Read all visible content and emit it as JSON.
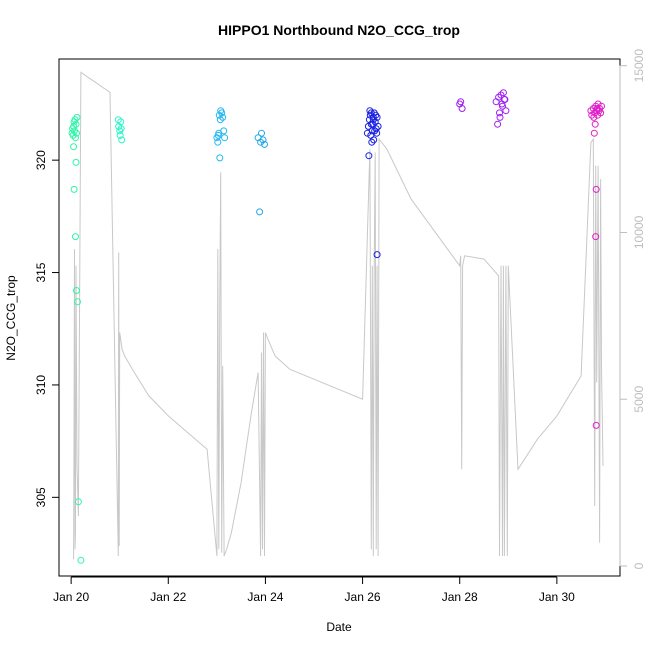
{
  "chart_data": {
    "type": "scatter",
    "title": "HIPPO1 Northbound N2O_CCG_trop",
    "xlabel": "Date",
    "ylabel": "N2O_CCG_trop",
    "x_unit": "day of January (1970-style date axis, year not shown)",
    "xlim": [
      19.75,
      31.3
    ],
    "ylim": [
      301.5,
      324.5
    ],
    "y2lim": [
      -300,
      15200
    ],
    "x_ticks": [
      20,
      22,
      24,
      26,
      28,
      30
    ],
    "x_tick_labels": [
      "Jan 20",
      "Jan 22",
      "Jan 24",
      "Jan 26",
      "Jan 28",
      "Jan 30"
    ],
    "y_ticks": [
      305,
      310,
      315,
      320
    ],
    "y2_ticks": [
      0,
      5000,
      10000,
      15000
    ],
    "grid": false,
    "legend": "none",
    "secondary_axis_color": "#bdbdbd",
    "secondary_series": {
      "name": "",
      "color": "#c8c8c8",
      "x": [
        20.05,
        20.06,
        20.07,
        20.08,
        20.09,
        20.1,
        20.12,
        20.15,
        20.2,
        20.3,
        20.5,
        20.8,
        20.97,
        20.98,
        20.99,
        21.0,
        21.02,
        21.05,
        21.1,
        21.3,
        21.6,
        22.0,
        22.4,
        22.8,
        23.0,
        23.02,
        23.04,
        23.06,
        23.08,
        23.1,
        23.12,
        23.15,
        23.2,
        23.3,
        23.5,
        23.7,
        23.85,
        23.9,
        23.92,
        23.94,
        23.96,
        23.98,
        24.0,
        24.05,
        24.2,
        24.5,
        25.0,
        25.5,
        26.0,
        26.15,
        26.18,
        26.2,
        26.22,
        26.24,
        26.26,
        26.28,
        26.3,
        26.32,
        26.34,
        26.5,
        27.0,
        27.5,
        28.0,
        28.02,
        28.04,
        28.06,
        28.1,
        28.5,
        28.8,
        28.82,
        28.85,
        28.88,
        28.9,
        28.92,
        28.95,
        28.98,
        29.0,
        29.2,
        29.6,
        30.0,
        30.5,
        30.7,
        30.75,
        30.78,
        30.8,
        30.82,
        30.85,
        30.88,
        30.9,
        30.92,
        30.95
      ],
      "y": [
        200,
        5000,
        9500,
        500,
        1000,
        9000,
        3000,
        1500,
        14800,
        14700,
        14500,
        14200,
        300,
        9400,
        600,
        7000,
        6800,
        6500,
        6300,
        5800,
        5100,
        4500,
        4000,
        3500,
        300,
        9500,
        500,
        8000,
        11800,
        400,
        6000,
        300,
        500,
        1000,
        2500,
        4500,
        5800,
        300,
        6400,
        500,
        7000,
        300,
        7000,
        6800,
        6300,
        5900,
        5600,
        5300,
        5000,
        12500,
        500,
        9000,
        300,
        9000,
        12400,
        500,
        9000,
        300,
        12800,
        12500,
        11000,
        10000,
        9000,
        9300,
        2900,
        9000,
        9300,
        9200,
        8700,
        300,
        9000,
        300,
        9000,
        300,
        9000,
        300,
        9000,
        2900,
        3800,
        4500,
        5700,
        12700,
        12800,
        1800,
        12000,
        5500,
        12000,
        700,
        11600,
        6000,
        3000
      ]
    },
    "series": [
      {
        "color": "#2ef5a8",
        "x": [
          20.02,
          20.03,
          20.04,
          20.05,
          20.06,
          20.07,
          20.08,
          20.09,
          20.1,
          20.11,
          20.12,
          20.05,
          20.1,
          20.06,
          20.09,
          20.11,
          20.13,
          20.15,
          20.2
        ],
        "y": [
          321.2,
          321.4,
          321.1,
          321.5,
          321.7,
          321.3,
          321.8,
          321.0,
          321.6,
          321.2,
          321.9,
          320.6,
          319.9,
          318.7,
          316.6,
          314.2,
          313.7,
          304.8,
          302.2
        ]
      },
      {
        "color": "#2ef5c8",
        "x": [
          20.97,
          20.98,
          21.0,
          21.01,
          21.02,
          21.03,
          21.04
        ],
        "y": [
          321.8,
          321.5,
          321.3,
          321.1,
          321.7,
          321.4,
          320.9
        ]
      },
      {
        "color": "#22b8f0",
        "x": [
          23.0,
          23.02,
          23.04,
          23.05,
          23.07,
          23.08,
          23.1,
          23.12,
          23.14,
          23.16,
          23.06,
          23.03
        ],
        "y": [
          321.0,
          320.8,
          321.2,
          322.0,
          321.8,
          322.2,
          322.1,
          321.9,
          321.3,
          321.0,
          320.1,
          321.1
        ]
      },
      {
        "color": "#22a8e8",
        "x": [
          23.85,
          23.9,
          23.92,
          23.95,
          23.98,
          23.88
        ],
        "y": [
          321.0,
          320.8,
          321.2,
          320.9,
          320.7,
          317.7
        ]
      },
      {
        "color": "#1a20e0",
        "x": [
          26.1,
          26.12,
          26.14,
          26.16,
          26.18,
          26.2,
          26.22,
          26.24,
          26.26,
          26.28,
          26.3,
          26.32,
          26.15,
          26.17,
          26.19,
          26.21,
          26.23,
          26.25,
          26.27,
          26.29,
          26.13,
          26.18,
          26.22,
          26.3
        ],
        "y": [
          321.2,
          321.5,
          321.8,
          322.0,
          321.6,
          321.3,
          321.9,
          322.1,
          321.7,
          321.4,
          321.9,
          321.5,
          322.2,
          321.1,
          320.8,
          321.6,
          320.9,
          321.3,
          322.0,
          321.2,
          320.2,
          322.1,
          321.8,
          315.8
        ]
      },
      {
        "color": "#a020f0",
        "x": [
          28.0,
          28.02,
          28.05,
          28.75,
          28.8,
          28.82,
          28.85,
          28.88,
          28.9,
          28.92,
          28.95,
          28.78,
          28.83,
          28.87,
          28.93
        ],
        "y": [
          322.5,
          322.6,
          322.3,
          322.6,
          322.8,
          322.1,
          322.9,
          322.4,
          323.0,
          322.7,
          322.2,
          321.6,
          321.9,
          322.5,
          322.7
        ]
      },
      {
        "color": "#e020c8",
        "x": [
          30.7,
          30.72,
          30.75,
          30.78,
          30.8,
          30.82,
          30.85,
          30.88,
          30.9,
          30.92,
          30.76,
          30.79,
          30.84,
          30.87,
          30.77,
          30.81,
          30.8,
          30.83,
          30.81
        ],
        "y": [
          322.2,
          322.0,
          322.3,
          322.1,
          322.4,
          322.2,
          322.5,
          322.3,
          322.1,
          322.4,
          321.9,
          321.6,
          322.0,
          322.2,
          321.2,
          318.7,
          316.6,
          322.3,
          308.2
        ]
      }
    ]
  }
}
